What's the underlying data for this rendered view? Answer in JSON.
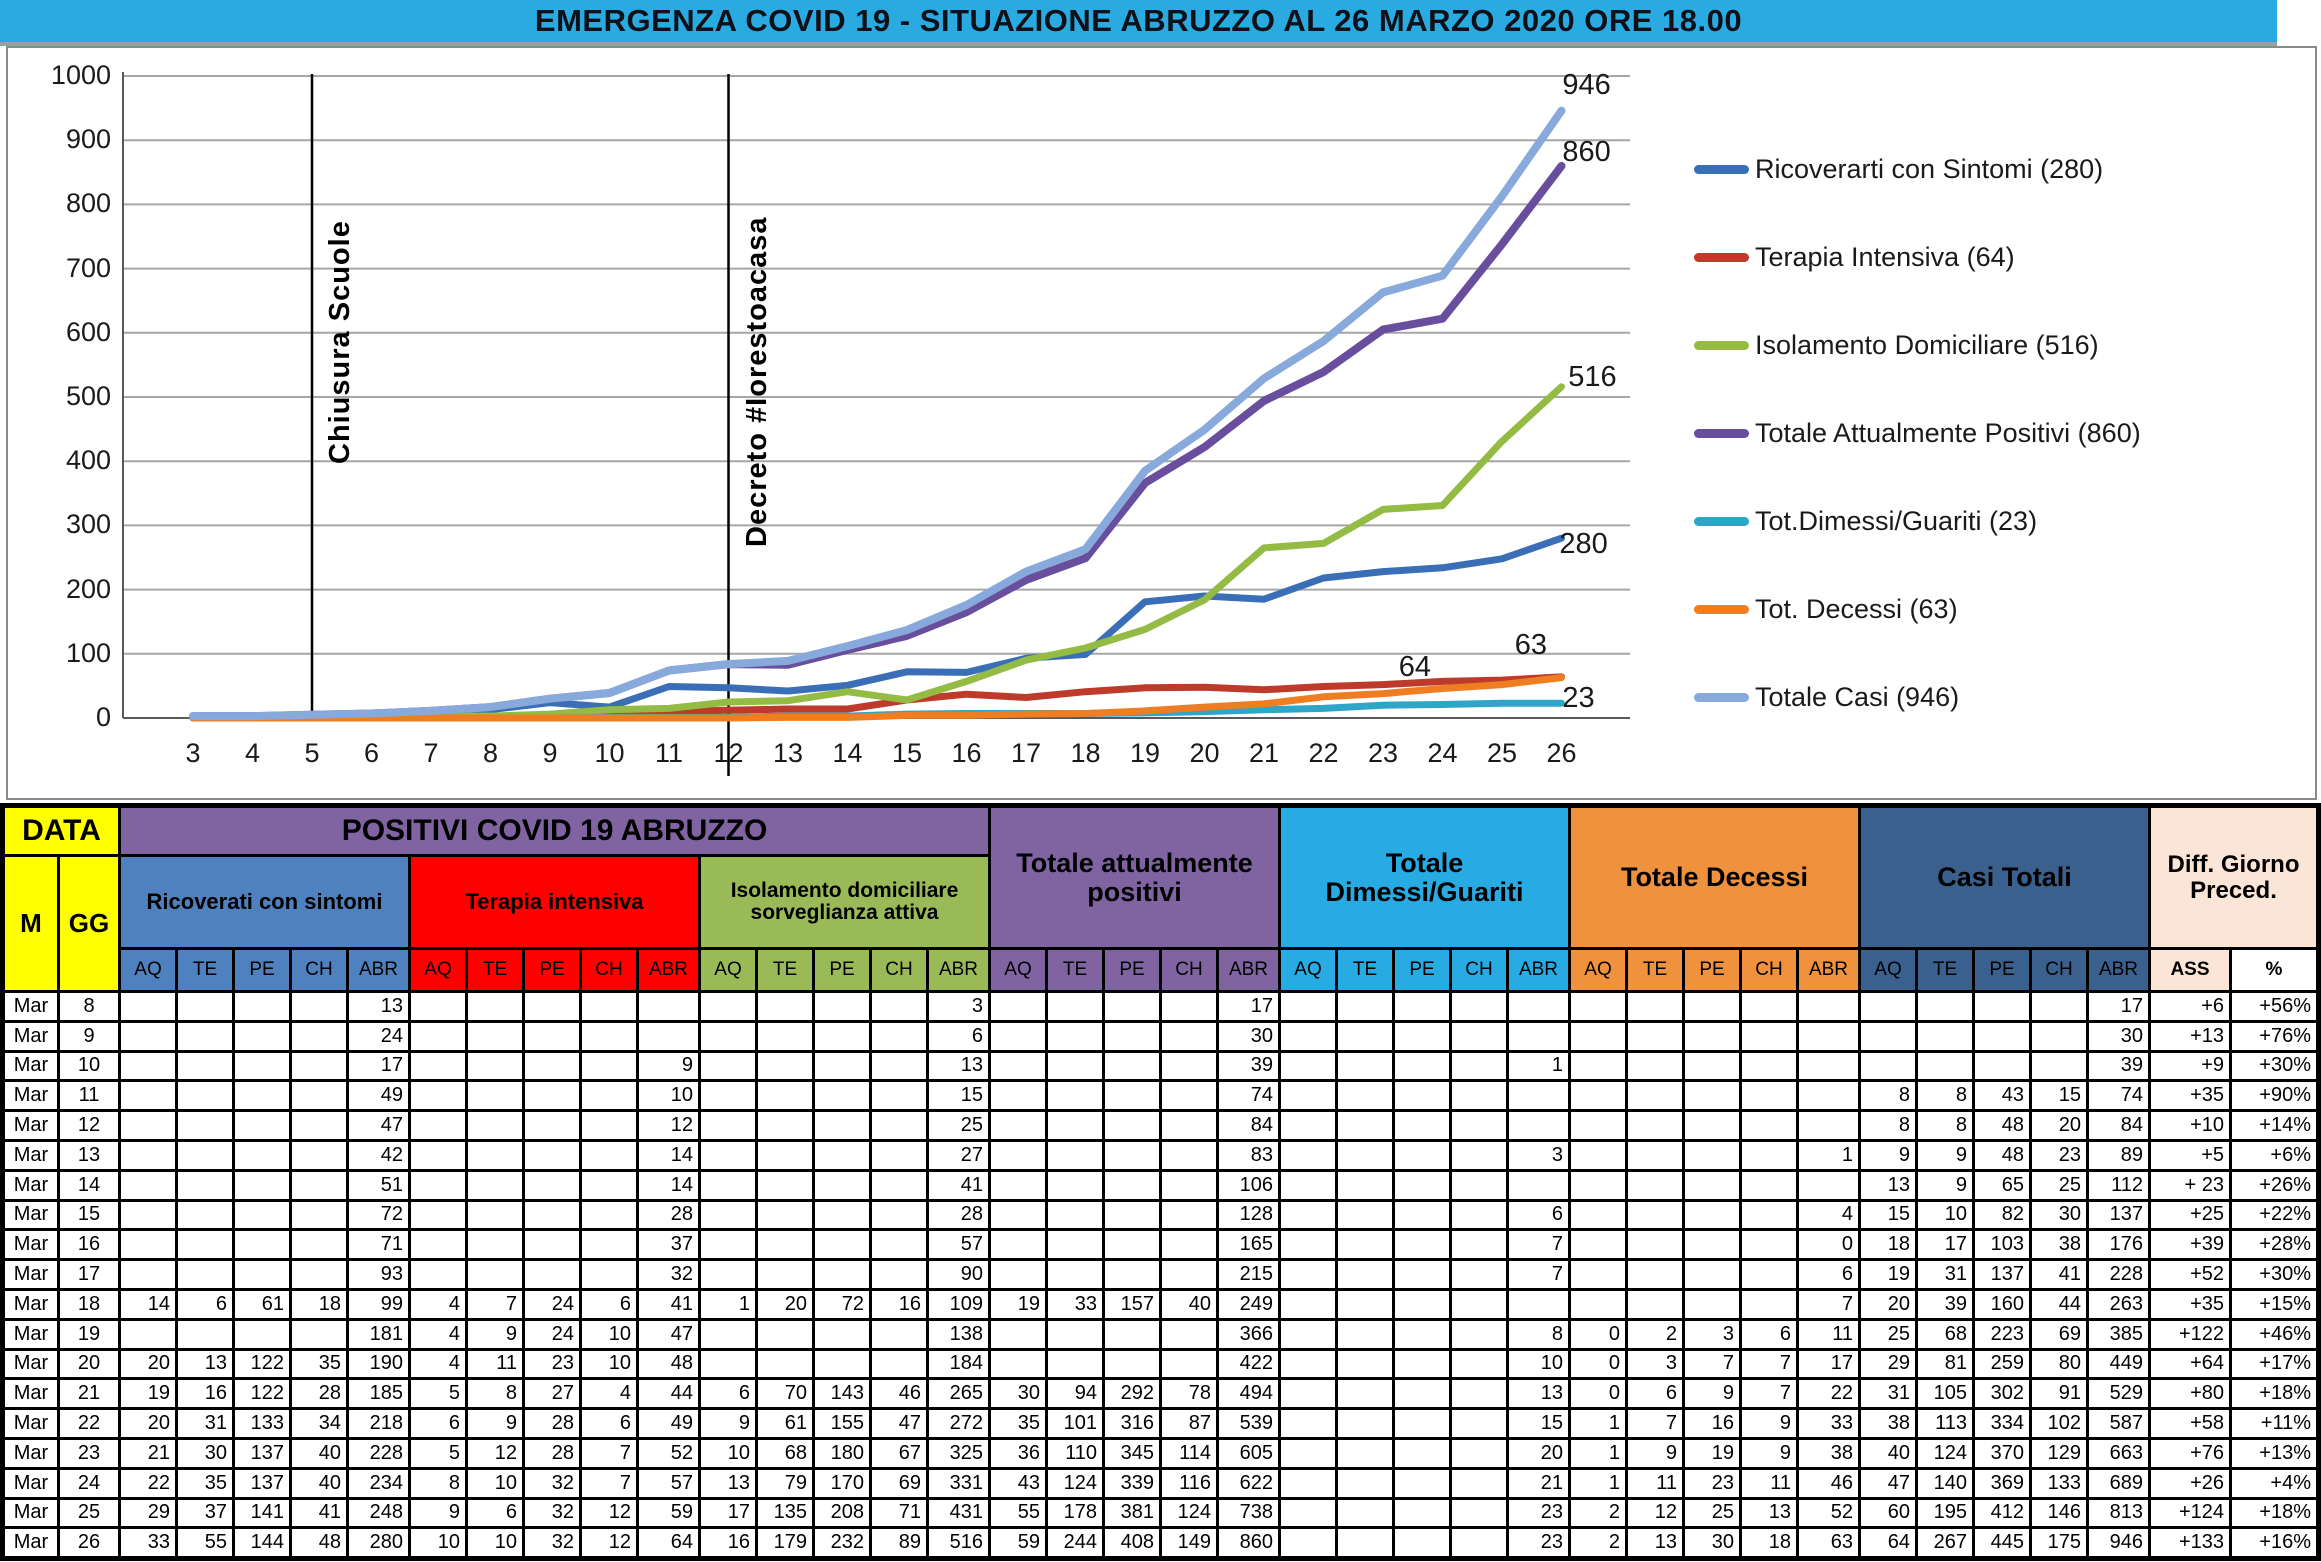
{
  "title": "EMERGENZA COVID 19 - SITUAZIONE ABRUZZO AL 26 MARZO 2020 ORE 18.00",
  "colors": {
    "title_bar": "#29ABE2",
    "ricoverati": "#3A6FB7",
    "terapia": "#BE3A2B",
    "isolamento": "#94BB44",
    "totale_positivi": "#6A4E9E",
    "dimessi": "#2FA5C8",
    "decessi": "#EF7D22",
    "casi": "#88A9DC",
    "table_yellow": "#FFFF00",
    "table_purple": "#8064A2",
    "table_blue": "#4E81BD",
    "table_red": "#FE0000",
    "table_green": "#9ABA58",
    "table_cyan": "#28ABE2",
    "table_orange": "#F0913D",
    "table_darkblue": "#3A618E",
    "table_cream": "#FBE5D6"
  },
  "chart": {
    "y_ticks": [
      1000,
      900,
      800,
      700,
      600,
      500,
      400,
      300,
      200,
      100,
      0
    ],
    "x_ticks": [
      3,
      4,
      5,
      6,
      7,
      8,
      9,
      10,
      11,
      12,
      13,
      14,
      15,
      16,
      17,
      18,
      19,
      20,
      21,
      22,
      23,
      24,
      25,
      26
    ],
    "annotations": [
      {
        "label": "Chiusura  Scuole",
        "day": 5,
        "extends_below_axis": false
      },
      {
        "label": "Decreto #Iorestoacasa",
        "day": 12,
        "extends_below_axis": true
      }
    ],
    "end_labels": [
      {
        "text": "946",
        "day": 26.35,
        "value": 985
      },
      {
        "text": "860",
        "day": 26.35,
        "value": 880
      },
      {
        "text": "516",
        "day": 26.45,
        "value": 530
      },
      {
        "text": "280",
        "day": 26.3,
        "value": 270
      },
      {
        "text": "64",
        "day": 23.6,
        "value": 78
      },
      {
        "text": "63",
        "day": 25.55,
        "value": 112
      },
      {
        "text": "23",
        "day": 26.35,
        "value": 30
      }
    ],
    "legend": [
      {
        "label": "Ricoverarti con Sintomi (280)",
        "color": "#3A6FB7"
      },
      {
        "label": "Terapia Intensiva (64)",
        "color": "#BE3A2B"
      },
      {
        "label": "Isolamento Domiciliare (516)",
        "color": "#94BB44"
      },
      {
        "label": "Totale Attualmente Positivi (860)",
        "color": "#6A4E9E"
      },
      {
        "label": "Tot.Dimessi/Guariti (23)",
        "color": "#2FA5C8"
      },
      {
        "label": "Tot. Decessi (63)",
        "color": "#EF7D22"
      },
      {
        "label": "Totale Casi (946)",
        "color": "#88A9DC"
      }
    ]
  },
  "chart_data": {
    "type": "line",
    "x": [
      3,
      4,
      5,
      6,
      7,
      8,
      9,
      10,
      11,
      12,
      13,
      14,
      15,
      16,
      17,
      18,
      19,
      20,
      21,
      22,
      23,
      24,
      25,
      26
    ],
    "x_note": "giorni di marzo 2020; valori dei giorni 3-7 stimati dal grafico (tabella parte dall'8 marzo)",
    "ylim": [
      0,
      1000
    ],
    "grid": true,
    "legend_position": "right",
    "series": [
      {
        "name": "Ricoverarti con Sintomi (280)",
        "color": "#3A6FB7",
        "stroke_width": 7,
        "values": [
          2,
          2,
          3,
          4,
          7,
          13,
          24,
          17,
          49,
          47,
          42,
          51,
          72,
          71,
          93,
          99,
          181,
          190,
          185,
          218,
          228,
          234,
          248,
          280
        ]
      },
      {
        "name": "Terapia Intensiva (64)",
        "color": "#BE3A2B",
        "stroke_width": 7,
        "values": [
          0,
          0,
          0,
          0,
          1,
          1,
          2,
          9,
          10,
          12,
          14,
          14,
          28,
          37,
          32,
          41,
          47,
          48,
          44,
          49,
          52,
          57,
          59,
          64
        ]
      },
      {
        "name": "Isolamento Domiciliare (516)",
        "color": "#94BB44",
        "stroke_width": 7,
        "values": [
          1,
          1,
          2,
          3,
          3,
          3,
          6,
          13,
          15,
          25,
          27,
          41,
          28,
          57,
          90,
          109,
          138,
          184,
          265,
          272,
          325,
          331,
          431,
          516
        ]
      },
      {
        "name": "Totale Attualmente Positivi (860)",
        "color": "#6A4E9E",
        "stroke_width": 8,
        "values": [
          3,
          3,
          5,
          7,
          11,
          17,
          30,
          39,
          74,
          84,
          83,
          106,
          128,
          165,
          215,
          249,
          366,
          422,
          494,
          539,
          605,
          622,
          738,
          860
        ]
      },
      {
        "name": "Tot.Dimessi/Guariti (23)",
        "color": "#2FA5C8",
        "stroke_width": 7,
        "values": [
          0,
          0,
          0,
          0,
          0,
          0,
          0,
          1,
          1,
          1,
          3,
          3,
          6,
          7,
          7,
          7,
          8,
          10,
          13,
          15,
          20,
          21,
          23,
          23
        ]
      },
      {
        "name": "Tot. Decessi (63)",
        "color": "#EF7D22",
        "stroke_width": 7,
        "values": [
          0,
          0,
          0,
          0,
          0,
          0,
          0,
          0,
          0,
          0,
          1,
          1,
          4,
          4,
          6,
          7,
          11,
          17,
          22,
          33,
          38,
          46,
          52,
          63
        ]
      },
      {
        "name": "Totale Casi (946)",
        "color": "#88A9DC",
        "stroke_width": 8,
        "values": [
          3,
          3,
          5,
          7,
          11,
          17,
          30,
          39,
          74,
          84,
          89,
          112,
          137,
          176,
          228,
          263,
          385,
          449,
          529,
          587,
          663,
          689,
          813,
          946
        ]
      }
    ]
  },
  "table": {
    "corner": "DATA",
    "month_col": "M",
    "day_col": "GG",
    "top_group": "POSITIVI COVID 19 ABRUZZO",
    "positivi_subgroups": [
      {
        "label": "Ricoverati con sintomi",
        "color": "#4E81BD"
      },
      {
        "label": "Terapia intensiva",
        "color": "#FE0000"
      },
      {
        "label": "Isolamento domiciliare sorveglianza attiva",
        "color": "#9ABA58"
      }
    ],
    "tall_groups": [
      {
        "label": "Totale attualmente positivi",
        "color": "#8064A2"
      },
      {
        "label": "Totale Dimessi/Guariti",
        "color": "#28ABE2"
      },
      {
        "label": "Totale Decessi",
        "color": "#F0913D"
      },
      {
        "label": "Casi Totali",
        "color": "#3A618E"
      }
    ],
    "subcols": [
      "AQ",
      "TE",
      "PE",
      "CH",
      "ABR"
    ],
    "diff_group": {
      "label": "Diff. Giorno Preced.",
      "color": "#FBE5D6",
      "cols": [
        "ASS",
        "%"
      ]
    },
    "rows": [
      [
        "Mar",
        "8",
        "",
        "",
        "",
        "",
        "13",
        "",
        "",
        "",
        "",
        "",
        "",
        "",
        "",
        "",
        "3",
        "",
        "",
        "",
        "",
        "17",
        "",
        "",
        "",
        "",
        "",
        "",
        "",
        "",
        "",
        "",
        "",
        "",
        "",
        "",
        "17",
        "+6",
        "+56%"
      ],
      [
        "Mar",
        "9",
        "",
        "",
        "",
        "",
        "24",
        "",
        "",
        "",
        "",
        "",
        "",
        "",
        "",
        "",
        "6",
        "",
        "",
        "",
        "",
        "30",
        "",
        "",
        "",
        "",
        "",
        "",
        "",
        "",
        "",
        "",
        "",
        "",
        "",
        "",
        "30",
        "+13",
        "+76%"
      ],
      [
        "Mar",
        "10",
        "",
        "",
        "",
        "",
        "17",
        "",
        "",
        "",
        "",
        "9",
        "",
        "",
        "",
        "",
        "13",
        "",
        "",
        "",
        "",
        "39",
        "",
        "",
        "",
        "",
        "1",
        "",
        "",
        "",
        "",
        "",
        "",
        "",
        "",
        "",
        "39",
        "+9",
        "+30%"
      ],
      [
        "Mar",
        "11",
        "",
        "",
        "",
        "",
        "49",
        "",
        "",
        "",
        "",
        "10",
        "",
        "",
        "",
        "",
        "15",
        "",
        "",
        "",
        "",
        "74",
        "",
        "",
        "",
        "",
        "",
        "",
        "",
        "",
        "",
        "",
        "8",
        "8",
        "43",
        "15",
        "74",
        "+35",
        "+90%"
      ],
      [
        "Mar",
        "12",
        "",
        "",
        "",
        "",
        "47",
        "",
        "",
        "",
        "",
        "12",
        "",
        "",
        "",
        "",
        "25",
        "",
        "",
        "",
        "",
        "84",
        "",
        "",
        "",
        "",
        "",
        "",
        "",
        "",
        "",
        "",
        "8",
        "8",
        "48",
        "20",
        "84",
        "+10",
        "+14%"
      ],
      [
        "Mar",
        "13",
        "",
        "",
        "",
        "",
        "42",
        "",
        "",
        "",
        "",
        "14",
        "",
        "",
        "",
        "",
        "27",
        "",
        "",
        "",
        "",
        "83",
        "",
        "",
        "",
        "",
        "3",
        "",
        "",
        "",
        "",
        "1",
        "9",
        "9",
        "48",
        "23",
        "89",
        "+5",
        "+6%"
      ],
      [
        "Mar",
        "14",
        "",
        "",
        "",
        "",
        "51",
        "",
        "",
        "",
        "",
        "14",
        "",
        "",
        "",
        "",
        "41",
        "",
        "",
        "",
        "",
        "106",
        "",
        "",
        "",
        "",
        "",
        "",
        "",
        "",
        "",
        "",
        "13",
        "9",
        "65",
        "25",
        "112",
        "+ 23",
        "+26%"
      ],
      [
        "Mar",
        "15",
        "",
        "",
        "",
        "",
        "72",
        "",
        "",
        "",
        "",
        "28",
        "",
        "",
        "",
        "",
        "28",
        "",
        "",
        "",
        "",
        "128",
        "",
        "",
        "",
        "",
        "6",
        "",
        "",
        "",
        "",
        "4",
        "15",
        "10",
        "82",
        "30",
        "137",
        "+25",
        "+22%"
      ],
      [
        "Mar",
        "16",
        "",
        "",
        "",
        "",
        "71",
        "",
        "",
        "",
        "",
        "37",
        "",
        "",
        "",
        "",
        "57",
        "",
        "",
        "",
        "",
        "165",
        "",
        "",
        "",
        "",
        "7",
        "",
        "",
        "",
        "",
        "0",
        "18",
        "17",
        "103",
        "38",
        "176",
        "+39",
        "+28%"
      ],
      [
        "Mar",
        "17",
        "",
        "",
        "",
        "",
        "93",
        "",
        "",
        "",
        "",
        "32",
        "",
        "",
        "",
        "",
        "90",
        "",
        "",
        "",
        "",
        "215",
        "",
        "",
        "",
        "",
        "7",
        "",
        "",
        "",
        "",
        "6",
        "19",
        "31",
        "137",
        "41",
        "228",
        "+52",
        "+30%"
      ],
      [
        "Mar",
        "18",
        "14",
        "6",
        "61",
        "18",
        "99",
        "4",
        "7",
        "24",
        "6",
        "41",
        "1",
        "20",
        "72",
        "16",
        "109",
        "19",
        "33",
        "157",
        "40",
        "249",
        "",
        "",
        "",
        "",
        "",
        "",
        "",
        "",
        "",
        "7",
        "20",
        "39",
        "160",
        "44",
        "263",
        "+35",
        "+15%"
      ],
      [
        "Mar",
        "19",
        "",
        "",
        "",
        "",
        "181",
        "4",
        "9",
        "24",
        "10",
        "47",
        "",
        "",
        "",
        "",
        "138",
        "",
        "",
        "",
        "",
        "366",
        "",
        "",
        "",
        "",
        "8",
        "0",
        "2",
        "3",
        "6",
        "11",
        "25",
        "68",
        "223",
        "69",
        "385",
        "+122",
        "+46%"
      ],
      [
        "Mar",
        "20",
        "20",
        "13",
        "122",
        "35",
        "190",
        "4",
        "11",
        "23",
        "10",
        "48",
        "",
        "",
        "",
        "",
        "184",
        "",
        "",
        "",
        "",
        "422",
        "",
        "",
        "",
        "",
        "10",
        "0",
        "3",
        "7",
        "7",
        "17",
        "29",
        "81",
        "259",
        "80",
        "449",
        "+64",
        "+17%"
      ],
      [
        "Mar",
        "21",
        "19",
        "16",
        "122",
        "28",
        "185",
        "5",
        "8",
        "27",
        "4",
        "44",
        "6",
        "70",
        "143",
        "46",
        "265",
        "30",
        "94",
        "292",
        "78",
        "494",
        "",
        "",
        "",
        "",
        "13",
        "0",
        "6",
        "9",
        "7",
        "22",
        "31",
        "105",
        "302",
        "91",
        "529",
        "+80",
        "+18%"
      ],
      [
        "Mar",
        "22",
        "20",
        "31",
        "133",
        "34",
        "218",
        "6",
        "9",
        "28",
        "6",
        "49",
        "9",
        "61",
        "155",
        "47",
        "272",
        "35",
        "101",
        "316",
        "87",
        "539",
        "",
        "",
        "",
        "",
        "15",
        "1",
        "7",
        "16",
        "9",
        "33",
        "38",
        "113",
        "334",
        "102",
        "587",
        "+58",
        "+11%"
      ],
      [
        "Mar",
        "23",
        "21",
        "30",
        "137",
        "40",
        "228",
        "5",
        "12",
        "28",
        "7",
        "52",
        "10",
        "68",
        "180",
        "67",
        "325",
        "36",
        "110",
        "345",
        "114",
        "605",
        "",
        "",
        "",
        "",
        "20",
        "1",
        "9",
        "19",
        "9",
        "38",
        "40",
        "124",
        "370",
        "129",
        "663",
        "+76",
        "+13%"
      ],
      [
        "Mar",
        "24",
        "22",
        "35",
        "137",
        "40",
        "234",
        "8",
        "10",
        "32",
        "7",
        "57",
        "13",
        "79",
        "170",
        "69",
        "331",
        "43",
        "124",
        "339",
        "116",
        "622",
        "",
        "",
        "",
        "",
        "21",
        "1",
        "11",
        "23",
        "11",
        "46",
        "47",
        "140",
        "369",
        "133",
        "689",
        "+26",
        "+4%"
      ],
      [
        "Mar",
        "25",
        "29",
        "37",
        "141",
        "41",
        "248",
        "9",
        "6",
        "32",
        "12",
        "59",
        "17",
        "135",
        "208",
        "71",
        "431",
        "55",
        "178",
        "381",
        "124",
        "738",
        "",
        "",
        "",
        "",
        "23",
        "2",
        "12",
        "25",
        "13",
        "52",
        "60",
        "195",
        "412",
        "146",
        "813",
        "+124",
        "+18%"
      ],
      [
        "Mar",
        "26",
        "33",
        "55",
        "144",
        "48",
        "280",
        "10",
        "10",
        "32",
        "12",
        "64",
        "16",
        "179",
        "232",
        "89",
        "516",
        "59",
        "244",
        "408",
        "149",
        "860",
        "",
        "",
        "",
        "",
        "23",
        "2",
        "13",
        "30",
        "18",
        "63",
        "64",
        "267",
        "445",
        "175",
        "946",
        "+133",
        "+16%"
      ]
    ]
  }
}
